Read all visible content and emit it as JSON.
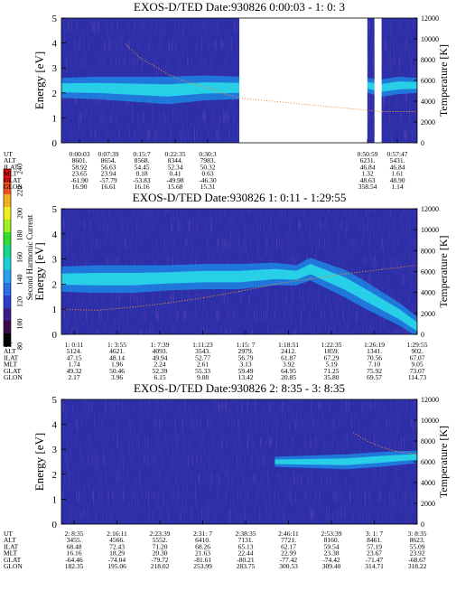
{
  "colorbar": {
    "label": "Second Harmonic Current",
    "ticks": [
      "240",
      "220",
      "200",
      "180",
      "160",
      "140",
      "120",
      "100",
      "80"
    ],
    "colors": [
      "#000000",
      "#3a0a4a",
      "#3c1c8c",
      "#2a3cc8",
      "#2a6ee6",
      "#2aa0f0",
      "#1cd0d8",
      "#18d890",
      "#30e030",
      "#a0f020",
      "#f0f020",
      "#f0b020",
      "#f05020",
      "#e01010"
    ]
  },
  "chart_data": [
    {
      "type": "heatmap",
      "title": "EXOS-D/TED   Date:930826  0:00:03 - 1: 0: 3",
      "ylabel": "Energy [eV]",
      "ylabel_right": "Temperature [K]",
      "ylim": [
        0,
        5
      ],
      "ylim_right": [
        0,
        12000
      ],
      "yticks": [
        "0",
        "1",
        "2",
        "3",
        "4",
        "5"
      ],
      "yticks_right": [
        "0",
        "2000",
        "4000",
        "6000",
        "8000",
        "10000",
        "12000"
      ],
      "data_gaps": [
        [
          0.5,
          0.86
        ],
        [
          0.88,
          0.9
        ]
      ],
      "band": {
        "x": [
          0.0,
          0.1,
          0.2,
          0.3,
          0.4,
          0.5,
          0.86,
          0.9,
          0.95,
          1.0
        ],
        "center": [
          2.2,
          2.2,
          2.15,
          2.1,
          2.2,
          2.2,
          2.3,
          2.2,
          2.3,
          2.3
        ],
        "width": [
          0.4,
          0.45,
          0.5,
          0.55,
          0.5,
          0.45,
          0.3,
          0.35,
          0.35,
          0.3
        ]
      },
      "temperature_trace": {
        "x": [
          0.18,
          0.22,
          0.26,
          0.3,
          0.34,
          0.38,
          0.42,
          0.46,
          0.5,
          0.9,
          1.0
        ],
        "y": [
          9500,
          8200,
          7400,
          6600,
          6000,
          5600,
          5200,
          4700,
          4300,
          3000,
          3000
        ]
      },
      "table": {
        "row_labels": [
          "UT",
          "ALT",
          "ILAT",
          "MLT",
          "GLAT",
          "GLON"
        ],
        "columns": [
          [
            "0:00:03",
            "8601.",
            "58.92",
            "23.65",
            "-61.90",
            "16.90"
          ],
          [
            "0:07:39",
            "8654.",
            "56.63",
            "23.94",
            "-57.79",
            "16.61"
          ],
          [
            "0:15:7",
            "8568.",
            "54.45",
            "0.18",
            "-53.83",
            "16.16"
          ],
          [
            "0:22:35",
            "8344.",
            "52.34",
            "0.41",
            "-49.98",
            "15.68"
          ],
          [
            "0:30:3",
            "7983.",
            "50.32",
            "0.63",
            "-46.30",
            "15.31"
          ],
          [
            "0:50:59",
            "6231.",
            "46.84",
            "1.32",
            "48.63",
            "358.54"
          ],
          [
            "0:57:47",
            "5431.",
            "46.84",
            "1.61",
            "48.90",
            "1.14"
          ]
        ]
      }
    },
    {
      "type": "heatmap",
      "title": "EXOS-D/TED   Date:930826  1: 0:11 - 1:29:55",
      "ylabel": "Energy [eV]",
      "ylabel_right": "Temperature [K]",
      "ylim": [
        0,
        5
      ],
      "ylim_right": [
        0,
        12000
      ],
      "yticks": [
        "0",
        "1",
        "2",
        "3",
        "4",
        "5"
      ],
      "yticks_right": [
        "0",
        "2000",
        "4000",
        "6000",
        "8000",
        "10000",
        "12000"
      ],
      "data_gaps": [],
      "band": {
        "x": [
          0.0,
          0.1,
          0.2,
          0.3,
          0.4,
          0.5,
          0.6,
          0.66,
          0.7,
          0.75,
          0.8,
          0.85,
          0.9,
          0.95,
          1.0
        ],
        "center": [
          2.2,
          2.2,
          2.2,
          2.25,
          2.3,
          2.3,
          2.4,
          2.35,
          2.6,
          2.3,
          2.0,
          1.6,
          1.2,
          0.8,
          0.3
        ],
        "width": [
          0.5,
          0.55,
          0.55,
          0.5,
          0.5,
          0.5,
          0.45,
          0.4,
          0.45,
          0.5,
          0.55,
          0.55,
          0.5,
          0.45,
          0.4
        ]
      },
      "temperature_trace": {
        "x": [
          0.0,
          0.1,
          0.2,
          0.3,
          0.4,
          0.5,
          0.6,
          0.7,
          0.8,
          0.9,
          1.0
        ],
        "y": [
          2400,
          2300,
          2600,
          3000,
          3500,
          4100,
          4800,
          5300,
          5800,
          6200,
          6600
        ]
      },
      "table": {
        "row_labels": [
          "UT",
          "ALT",
          "ILAT",
          "MLT",
          "GLAT",
          "GLON"
        ],
        "columns": [
          [
            "1: 0:11",
            "5124.",
            "47.15",
            "1.74",
            "49.32",
            "2.17"
          ],
          [
            "1: 3:55",
            "4621.",
            "48.14",
            "1.96",
            "50.46",
            "3.96"
          ],
          [
            "1: 7:39",
            "4093.",
            "49.94",
            "2.24",
            "52.39",
            "6.15"
          ],
          [
            "1:11:23",
            "3543.",
            "52.77",
            "2.61",
            "55.33",
            "9.08"
          ],
          [
            "1:15: 7",
            "2979.",
            "56.79",
            "3.13",
            "59.49",
            "13.42"
          ],
          [
            "1:18:51",
            "2412.",
            "61.87",
            "3.92",
            "64.95",
            "20.85"
          ],
          [
            "1:22:35",
            "1859.",
            "67.29",
            "5.19",
            "71.25",
            "35.80"
          ],
          [
            "1:26:19",
            "1341.",
            "70.56",
            "7.10",
            "75.92",
            "69.57"
          ],
          [
            "1:29:55",
            "902.",
            "67.07",
            "9.05",
            "73.07",
            "114.73"
          ]
        ]
      }
    },
    {
      "type": "heatmap",
      "title": "EXOS-D/TED   Date:930826  2: 8:35 - 3: 8:35",
      "ylabel": "Energy [eV]",
      "ylabel_right": "Temperature [K]",
      "ylim": [
        0,
        5
      ],
      "ylim_right": [
        0,
        12000
      ],
      "yticks": [
        "0",
        "1",
        "2",
        "3",
        "4",
        "5"
      ],
      "yticks_right": [
        "0",
        "2000",
        "4000",
        "6000",
        "8000",
        "10000",
        "12000"
      ],
      "data_gaps": [],
      "band": {
        "x": [
          0.6,
          0.7,
          0.8,
          0.9,
          1.0
        ],
        "center": [
          2.5,
          2.5,
          2.5,
          2.6,
          2.7
        ],
        "width": [
          0.2,
          0.25,
          0.3,
          0.3,
          0.25
        ]
      },
      "temperature_trace": {
        "x": [
          0.82,
          0.86,
          0.9,
          0.94,
          0.98,
          1.0
        ],
        "y": [
          8800,
          8000,
          7400,
          7000,
          6800,
          6700
        ]
      },
      "table": {
        "row_labels": [
          "UT",
          "ALT",
          "ILAT",
          "MLT",
          "GLAT",
          "GLON"
        ],
        "columns": [
          [
            "2: 8:35",
            "3455.",
            "68.48",
            "16.16",
            "-64.46",
            "182.35"
          ],
          [
            "2:16:11",
            "4566.",
            "72.43",
            "18.29",
            "-74.04",
            "195.06"
          ],
          [
            "2:23:39",
            "5552.",
            "71.20",
            "20.30",
            "-79.72",
            "218.02"
          ],
          [
            "2:31: 7",
            "6410.",
            "68.26",
            "21.63",
            "-81.61",
            "253.99"
          ],
          [
            "2:38:35",
            "7131.",
            "65.13",
            "22.44",
            "-80.21",
            "283.75"
          ],
          [
            "2:46:11",
            "7721.",
            "62.17",
            "22.99",
            "-77.42",
            "300.53"
          ],
          [
            "2:53:39",
            "8160.",
            "59.54",
            "23.38",
            "-74.42",
            "309.40"
          ],
          [
            "3: 1: 7",
            "8461.",
            "57.19",
            "23.67",
            "-71.47",
            "314.71"
          ],
          [
            "3: 8:35",
            "8623.",
            "55.09",
            "23.92",
            "-68.67",
            "318.22"
          ]
        ]
      }
    }
  ]
}
